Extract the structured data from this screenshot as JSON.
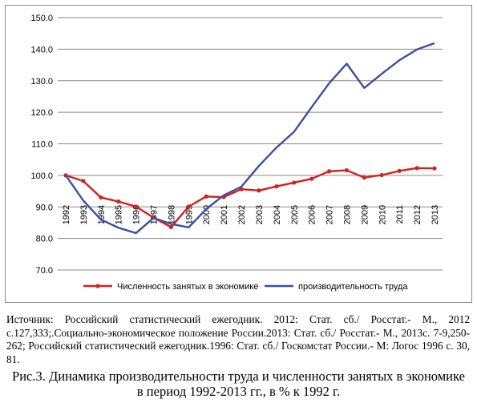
{
  "chart_data": {
    "type": "line",
    "title": "",
    "xlabel": "",
    "ylabel": "",
    "ylim": [
      70,
      150
    ],
    "yticks": [
      "70.0",
      "80.0",
      "90.0",
      "100.0",
      "110.0",
      "120.0",
      "130.0",
      "140.0",
      "150.0"
    ],
    "categories": [
      "1992",
      "1993",
      "1994",
      "1995",
      "1996",
      "1997",
      "1998",
      "1999",
      "2000",
      "2001",
      "2002",
      "2003",
      "2004",
      "2005",
      "2006",
      "2007",
      "2008",
      "2009",
      "2010",
      "2011",
      "2012",
      "2013"
    ],
    "grid": "horizontal",
    "legend_position": "bottom",
    "series": [
      {
        "name": "Численность занятых в экономике",
        "color": "#d42020",
        "marker": "circle",
        "values": [
          100.0,
          98.2,
          93.0,
          91.7,
          90.1,
          86.6,
          83.6,
          90.1,
          93.3,
          93.1,
          95.6,
          95.2,
          96.5,
          97.7,
          98.9,
          101.3,
          101.6,
          99.3,
          100.1,
          101.4,
          102.3,
          102.2
        ]
      },
      {
        "name": "производительность труда",
        "color": "#3b4fa0",
        "marker": "none",
        "values": [
          100.0,
          92.0,
          86.0,
          83.4,
          81.7,
          86.5,
          84.6,
          83.5,
          89.3,
          93.7,
          96.4,
          103.0,
          108.8,
          113.8,
          121.6,
          129.2,
          135.4,
          127.7,
          132.2,
          136.5,
          139.9,
          141.9
        ]
      }
    ]
  },
  "source_text": "Источник: Российский статистический ежегодник. 2012: Стат. сб./ Росстат.- М., 2012 с.127,333;.Социально-экономическое положение России.2013: Стат. сб./ Росстат.- М., 2013с. 7-9,250-262; Российский статистический ежегодник.1996: Стат. сб./ Госкомстат России.- М: Логос 1996 с. 30, 81.",
  "caption": {
    "line1": "Рис.3. Динамика производительности труда и численности занятых в экономике",
    "line2": "в период 1992-2013 гг., в % к 1992 г."
  }
}
